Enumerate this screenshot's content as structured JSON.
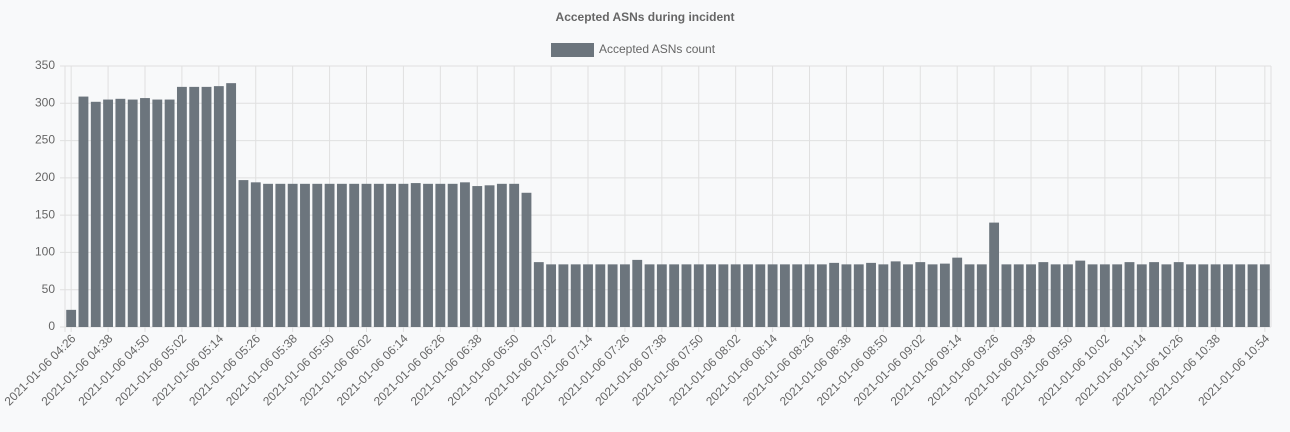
{
  "chart_data": {
    "type": "bar",
    "title": "Accepted ASNs during incident",
    "series": [
      {
        "name": "Accepted ASNs count",
        "color": "#6c757d",
        "values": [
          23,
          309,
          302,
          305,
          306,
          305,
          307,
          305,
          305,
          322,
          322,
          322,
          323,
          327,
          197,
          194,
          192,
          192,
          192,
          192,
          192,
          192,
          192,
          192,
          192,
          192,
          192,
          192,
          193,
          192,
          192,
          192,
          194,
          189,
          190,
          192,
          192,
          180,
          87,
          84,
          84,
          84,
          84,
          84,
          84,
          84,
          90,
          84,
          84,
          84,
          84,
          84,
          84,
          84,
          84,
          84,
          84,
          84,
          84,
          84,
          84,
          84,
          86,
          84,
          84,
          86,
          84,
          88,
          84,
          87,
          84,
          85,
          93,
          84,
          84,
          140,
          84,
          84,
          84,
          87,
          84,
          84,
          89,
          84,
          84,
          84,
          87,
          84,
          87,
          84,
          87,
          84,
          84,
          84,
          84,
          84,
          84,
          84
        ]
      }
    ],
    "categories": [
      "2021-01-06 04:26",
      null,
      null,
      "2021-01-06 04:38",
      null,
      null,
      "2021-01-06 04:50",
      null,
      null,
      "2021-01-06 05:02",
      null,
      null,
      "2021-01-06 05:14",
      null,
      null,
      "2021-01-06 05:26",
      null,
      null,
      "2021-01-06 05:38",
      null,
      null,
      "2021-01-06 05:50",
      null,
      null,
      "2021-01-06 06:02",
      null,
      null,
      "2021-01-06 06:14",
      null,
      null,
      "2021-01-06 06:26",
      null,
      null,
      "2021-01-06 06:38",
      null,
      null,
      "2021-01-06 06:50",
      null,
      null,
      "2021-01-06 07:02",
      null,
      null,
      "2021-01-06 07:14",
      null,
      null,
      "2021-01-06 07:26",
      null,
      null,
      "2021-01-06 07:38",
      null,
      null,
      "2021-01-06 07:50",
      null,
      null,
      "2021-01-06 08:02",
      null,
      null,
      "2021-01-06 08:14",
      null,
      null,
      "2021-01-06 08:26",
      null,
      null,
      "2021-01-06 08:38",
      null,
      null,
      "2021-01-06 08:50",
      null,
      null,
      "2021-01-06 09:02",
      null,
      null,
      "2021-01-06 09:14",
      null,
      null,
      "2021-01-06 09:26",
      null,
      null,
      "2021-01-06 09:38",
      null,
      null,
      "2021-01-06 09:50",
      null,
      null,
      "2021-01-06 10:02",
      null,
      null,
      "2021-01-06 10:14",
      null,
      null,
      "2021-01-06 10:26",
      null,
      null,
      "2021-01-06 10:38",
      null,
      null,
      null,
      "2021-01-06 10:54"
    ],
    "ylim": [
      0,
      350
    ],
    "yticks": [
      0,
      50,
      100,
      150,
      200,
      250,
      300,
      350
    ],
    "grid": true,
    "legend": "top"
  }
}
